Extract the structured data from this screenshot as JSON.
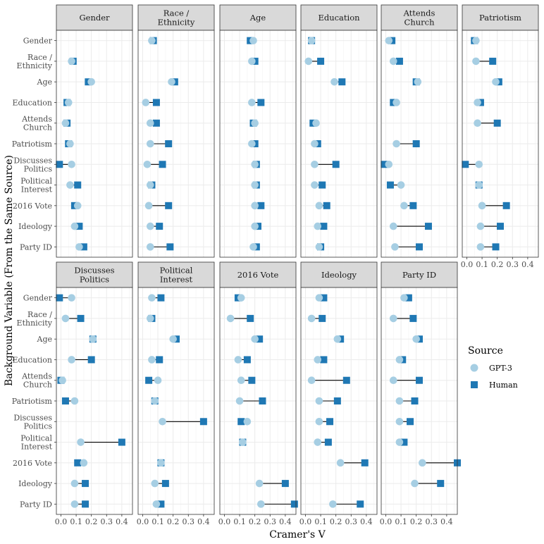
{
  "chart_data": {
    "type": "dumbbell",
    "xlabel": "Cramer's V",
    "ylabel": "Background Variable (From the Same Source)",
    "xlim": [
      -0.03,
      0.47
    ],
    "xticks": [
      "0.0",
      "0.1",
      "0.2",
      "0.3",
      "0.4"
    ],
    "xtick_values": [
      0,
      0.1,
      0.2,
      0.3,
      0.4
    ],
    "rows": [
      "Gender",
      "Race / Ethnicity",
      "Age",
      "Education",
      "Attends Church",
      "Patriotism",
      "Discusses Politics",
      "Political Interest",
      "2016 Vote",
      "Ideology",
      "Party ID"
    ],
    "row_label_lines": [
      [
        "Gender"
      ],
      [
        "Race /",
        "Ethnicity"
      ],
      [
        "Age"
      ],
      [
        "Education"
      ],
      [
        "Attends",
        "Church"
      ],
      [
        "Patriotism"
      ],
      [
        "Discusses",
        "Politics"
      ],
      [
        "Political",
        "Interest"
      ],
      [
        "2016 Vote"
      ],
      [
        "Ideology"
      ],
      [
        "Party ID"
      ]
    ],
    "legend": {
      "title": "Source",
      "items": [
        {
          "label": "GPT-3",
          "color": "#a6cee3",
          "shape": "circle"
        },
        {
          "label": "Human",
          "color": "#1f78b4",
          "shape": "square"
        }
      ]
    },
    "panels": [
      {
        "title_lines": [
          "Gender"
        ],
        "skip_row": "Gender",
        "gpt3": [
          null,
          0.07,
          0.2,
          0.05,
          0.03,
          0.06,
          0.07,
          0.06,
          0.11,
          0.09,
          0.12
        ],
        "human": [
          null,
          0.08,
          0.18,
          0.04,
          0.04,
          0.05,
          -0.01,
          0.11,
          0.09,
          0.12,
          0.15
        ]
      },
      {
        "title_lines": [
          "Race /",
          "Ethnicity"
        ],
        "skip_row": "Race / Ethnicity",
        "gpt3": [
          0.06,
          null,
          0.19,
          0.02,
          0.05,
          0.05,
          0.03,
          0.05,
          0.04,
          0.05,
          0.05
        ],
        "human": [
          0.07,
          null,
          0.21,
          0.09,
          0.09,
          0.17,
          0.13,
          0.06,
          0.17,
          0.11,
          0.18
        ]
      },
      {
        "title_lines": [
          "Age"
        ],
        "skip_row": "Age",
        "gpt3": [
          0.19,
          0.18,
          null,
          0.18,
          0.2,
          0.18,
          0.2,
          0.2,
          0.2,
          0.2,
          0.19
        ],
        "human": [
          0.17,
          0.2,
          null,
          0.24,
          0.19,
          0.2,
          0.21,
          0.21,
          0.24,
          0.22,
          0.21
        ]
      },
      {
        "title_lines": [
          "Education"
        ],
        "skip_row": "Education",
        "gpt3": [
          0.04,
          0.02,
          0.19,
          null,
          0.07,
          0.06,
          0.06,
          0.06,
          0.09,
          0.08,
          0.09
        ],
        "human": [
          0.04,
          0.1,
          0.24,
          null,
          0.05,
          0.08,
          0.2,
          0.11,
          0.14,
          0.12,
          0.1
        ]
      },
      {
        "title_lines": [
          "Attends",
          "Church"
        ],
        "skip_row": "Attends Church",
        "gpt3": [
          0.02,
          0.05,
          0.21,
          0.07,
          null,
          0.07,
          0.02,
          0.1,
          0.12,
          0.05,
          0.06
        ],
        "human": [
          0.04,
          0.09,
          0.2,
          0.05,
          null,
          0.2,
          -0.01,
          0.03,
          0.18,
          0.28,
          0.22
        ]
      },
      {
        "title_lines": [
          "Patriotism"
        ],
        "skip_row": "Patriotism",
        "gpt3": [
          0.06,
          0.06,
          0.19,
          0.07,
          0.07,
          null,
          0.08,
          0.08,
          0.1,
          0.09,
          0.09
        ],
        "human": [
          0.05,
          0.17,
          0.21,
          0.09,
          0.2,
          null,
          -0.01,
          0.08,
          0.26,
          0.22,
          0.19
        ]
      },
      {
        "title_lines": [
          "Discusses",
          "Politics"
        ],
        "skip_row": "Discusses Politics",
        "gpt3": [
          0.07,
          0.03,
          0.21,
          0.07,
          0.01,
          0.09,
          null,
          0.13,
          0.15,
          0.09,
          0.09
        ],
        "human": [
          -0.01,
          0.13,
          0.21,
          0.2,
          0.0,
          0.03,
          null,
          0.4,
          0.11,
          0.16,
          0.16
        ]
      },
      {
        "title_lines": [
          "Political",
          "Interest"
        ],
        "skip_row": "Political Interest",
        "gpt3": [
          0.06,
          0.05,
          0.2,
          0.06,
          0.1,
          0.08,
          0.13,
          null,
          0.12,
          0.08,
          0.09
        ],
        "human": [
          0.12,
          0.06,
          0.22,
          0.11,
          0.04,
          0.08,
          0.4,
          null,
          0.12,
          0.15,
          0.12
        ]
      },
      {
        "title_lines": [
          "2016 Vote"
        ],
        "skip_row": "2016 Vote",
        "gpt3": [
          0.11,
          0.04,
          0.2,
          0.09,
          0.11,
          0.1,
          0.15,
          0.12,
          null,
          0.23,
          0.24
        ],
        "human": [
          0.09,
          0.17,
          0.23,
          0.15,
          0.18,
          0.25,
          0.11,
          0.12,
          null,
          0.4,
          0.46
        ]
      },
      {
        "title_lines": [
          "Ideology"
        ],
        "skip_row": "Ideology",
        "gpt3": [
          0.09,
          0.04,
          0.21,
          0.08,
          0.04,
          0.09,
          0.09,
          0.08,
          0.23,
          null,
          0.18
        ],
        "human": [
          0.12,
          0.11,
          0.23,
          0.12,
          0.27,
          0.21,
          0.16,
          0.15,
          0.39,
          null,
          0.36
        ]
      },
      {
        "title_lines": [
          "Party ID"
        ],
        "skip_row": "Party ID",
        "gpt3": [
          0.12,
          0.05,
          0.2,
          0.09,
          0.05,
          0.09,
          0.09,
          0.09,
          0.24,
          0.19,
          null
        ],
        "human": [
          0.15,
          0.18,
          0.22,
          0.11,
          0.22,
          0.19,
          0.16,
          0.12,
          0.47,
          0.36,
          null
        ]
      }
    ]
  }
}
